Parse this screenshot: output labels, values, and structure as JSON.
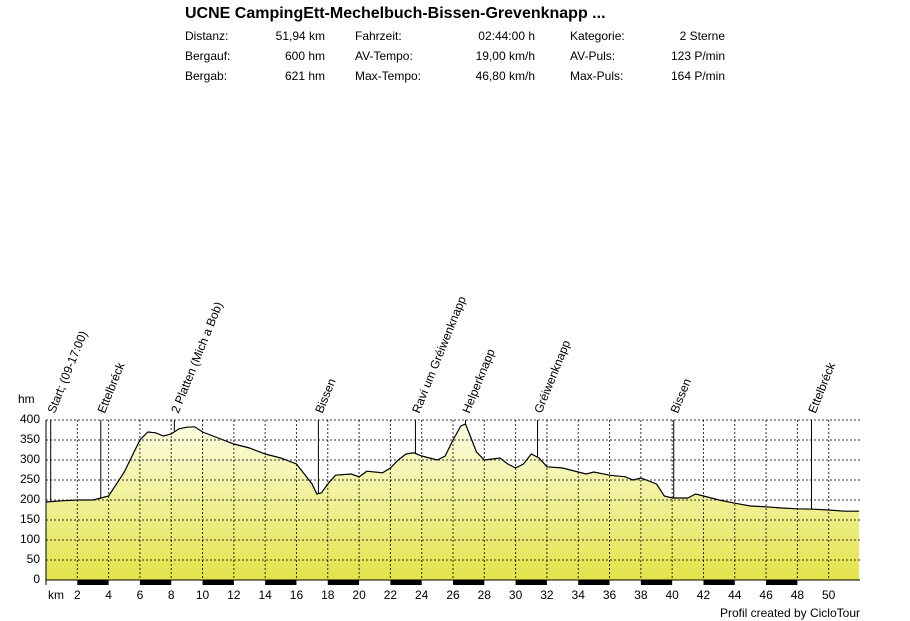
{
  "chart_data": {
    "type": "area",
    "title": "UCNE CampingEtt-Mechelbuch-Bissen-Grevenknapp ...",
    "stats": [
      [
        [
          "Distanz:",
          "51,94 km"
        ],
        [
          "Fahrzeit:",
          "02:44:00 h"
        ],
        [
          "Kategorie:",
          "2 Sterne"
        ]
      ],
      [
        [
          "Bergauf:",
          "600 hm"
        ],
        [
          "AV-Tempo:",
          "19,00 km/h"
        ],
        [
          "AV-Puls:",
          "123 P/min"
        ]
      ],
      [
        [
          "Bergab:",
          "621 hm"
        ],
        [
          "Max-Tempo:",
          "46,80 km/h"
        ],
        [
          "Max-Puls:",
          "164 P/min"
        ]
      ]
    ],
    "xlabel": "km",
    "ylabel": "hm",
    "footer": "Profil created by CicloTour",
    "xlim": [
      0,
      52
    ],
    "ylim": [
      0,
      400
    ],
    "xticks": [
      2,
      4,
      6,
      8,
      10,
      12,
      14,
      16,
      18,
      20,
      22,
      24,
      26,
      28,
      30,
      32,
      34,
      36,
      38,
      40,
      42,
      44,
      46,
      48,
      50
    ],
    "yticks": [
      0,
      50,
      100,
      150,
      200,
      250,
      300,
      350,
      400
    ],
    "grid": true,
    "color_top": "#fdfde6",
    "color_bottom": "#e3e34a",
    "x": [
      0,
      1,
      2,
      3,
      3.5,
      4,
      4.5,
      5,
      5.5,
      6,
      6.5,
      7,
      7.5,
      8,
      8.5,
      9,
      9.5,
      10,
      11,
      12,
      13,
      14,
      15,
      16,
      17,
      17.3,
      17.6,
      18,
      18.5,
      19.5,
      20,
      20.5,
      21.5,
      22,
      22.5,
      23,
      23.5,
      24,
      25,
      25.5,
      26,
      26.5,
      26.8,
      27,
      27.5,
      28,
      29,
      29.5,
      30,
      30.5,
      31,
      31.5,
      32,
      33,
      34,
      34.5,
      35,
      36,
      37,
      37.5,
      38,
      39,
      39.5,
      40,
      41,
      41.5,
      42,
      43,
      44,
      45,
      46,
      47,
      48,
      49,
      50,
      51,
      51.94
    ],
    "y": [
      195,
      198,
      200,
      200,
      205,
      210,
      240,
      270,
      310,
      350,
      370,
      368,
      360,
      365,
      378,
      382,
      383,
      370,
      355,
      340,
      330,
      315,
      305,
      290,
      240,
      215,
      218,
      240,
      262,
      265,
      258,
      272,
      268,
      280,
      300,
      315,
      318,
      310,
      300,
      310,
      350,
      385,
      390,
      370,
      320,
      300,
      305,
      290,
      280,
      290,
      315,
      305,
      283,
      280,
      270,
      265,
      270,
      262,
      258,
      250,
      255,
      240,
      210,
      205,
      205,
      215,
      210,
      200,
      192,
      185,
      183,
      180,
      178,
      177,
      175,
      172,
      172
    ],
    "waypoints": [
      {
        "km": 0.3,
        "label": "Start; (09-17:00)"
      },
      {
        "km": 3.5,
        "label": "Ettelbréck"
      },
      {
        "km": 8.2,
        "label": "2 Platten (Mich a Bob)"
      },
      {
        "km": 17.4,
        "label": "Bissen"
      },
      {
        "km": 23.6,
        "label": "Ravi um Gréiwenknapp"
      },
      {
        "km": 26.8,
        "label": "Helperknapp"
      },
      {
        "km": 31.4,
        "label": "Gréiwenknapp"
      },
      {
        "km": 40.1,
        "label": "Bissen"
      },
      {
        "km": 48.9,
        "label": "Ettelbréck"
      }
    ]
  }
}
